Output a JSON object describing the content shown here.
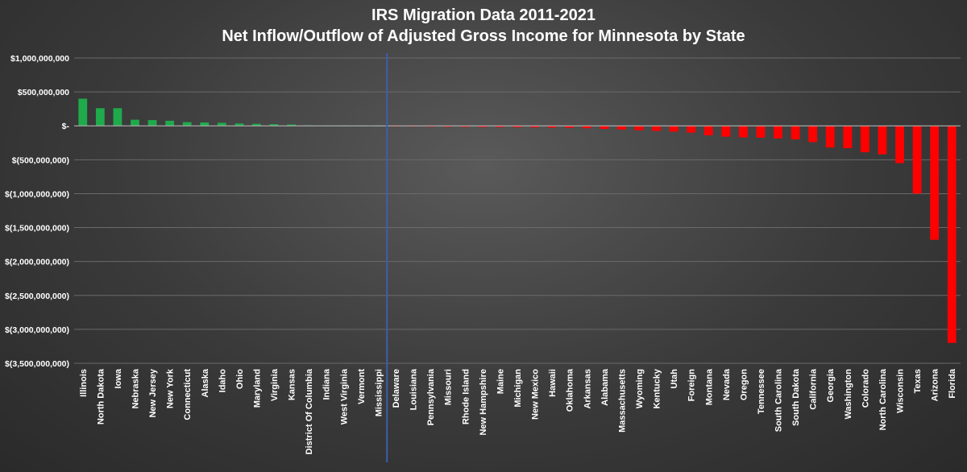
{
  "chart_data": {
    "type": "bar",
    "title": "IRS Migration Data 2011-2021",
    "subtitle": "Net Inflow/Outflow of Adjusted Gross Income for Minnesota by State",
    "xlabel": "",
    "ylabel": "",
    "ylim": [
      -3500000000,
      1000000000
    ],
    "yticks": [
      1000000000,
      500000000,
      0,
      -500000000,
      -1000000000,
      -1500000000,
      -2000000000,
      -2500000000,
      -3000000000,
      -3500000000
    ],
    "ytick_labels": [
      "$1,000,000,000",
      "$500,000,000",
      "$-",
      "$(500,000,000)",
      "$(1,000,000,000)",
      "$(1,500,000,000)",
      "$(2,000,000,000)",
      "$(2,500,000,000)",
      "$(3,000,000,000)",
      "$(3,500,000,000)"
    ],
    "grid": true,
    "divider_after": "Mississippi",
    "colors": {
      "positive": "#1faa4b",
      "negative": "#ff0000",
      "divider": "#3a5fb0",
      "grid": "#6a6a6a"
    },
    "categories": [
      "Illinois",
      "North Dakota",
      "Iowa",
      "Nebraska",
      "New Jersey",
      "New York",
      "Connecticut",
      "Alaska",
      "Idaho",
      "Ohio",
      "Maryland",
      "Virginia",
      "Kansas",
      "District Of Columbia",
      "Indiana",
      "West Virginia",
      "Vermont",
      "Mississippi",
      "Delaware",
      "Louisiana",
      "Pennsylvania",
      "Missouri",
      "Rhode Island",
      "New Hampshire",
      "Maine",
      "Michigan",
      "New Mexico",
      "Hawaii",
      "Oklahoma",
      "Arkansas",
      "Alabama",
      "Massachusetts",
      "Wyoming",
      "Kentucky",
      "Utah",
      "Foreign",
      "Montana",
      "Nevada",
      "Oregon",
      "Tennessee",
      "South Carolina",
      "South Dakota",
      "California",
      "Georgia",
      "Washington",
      "Colorado",
      "North Carolina",
      "Wisconsin",
      "Texas",
      "Arizona",
      "Florida"
    ],
    "values": [
      400000000,
      260000000,
      260000000,
      90000000,
      85000000,
      75000000,
      55000000,
      50000000,
      45000000,
      35000000,
      30000000,
      25000000,
      20000000,
      8000000,
      6000000,
      5000000,
      4000000,
      3000000,
      -8000000,
      -10000000,
      -12000000,
      -14000000,
      -15000000,
      -17000000,
      -18000000,
      -20000000,
      -22000000,
      -25000000,
      -28000000,
      -35000000,
      -45000000,
      -55000000,
      -65000000,
      -75000000,
      -85000000,
      -100000000,
      -140000000,
      -160000000,
      -170000000,
      -175000000,
      -185000000,
      -200000000,
      -240000000,
      -320000000,
      -330000000,
      -390000000,
      -420000000,
      -550000000,
      -1000000000,
      -1680000000,
      -3200000000
    ]
  }
}
